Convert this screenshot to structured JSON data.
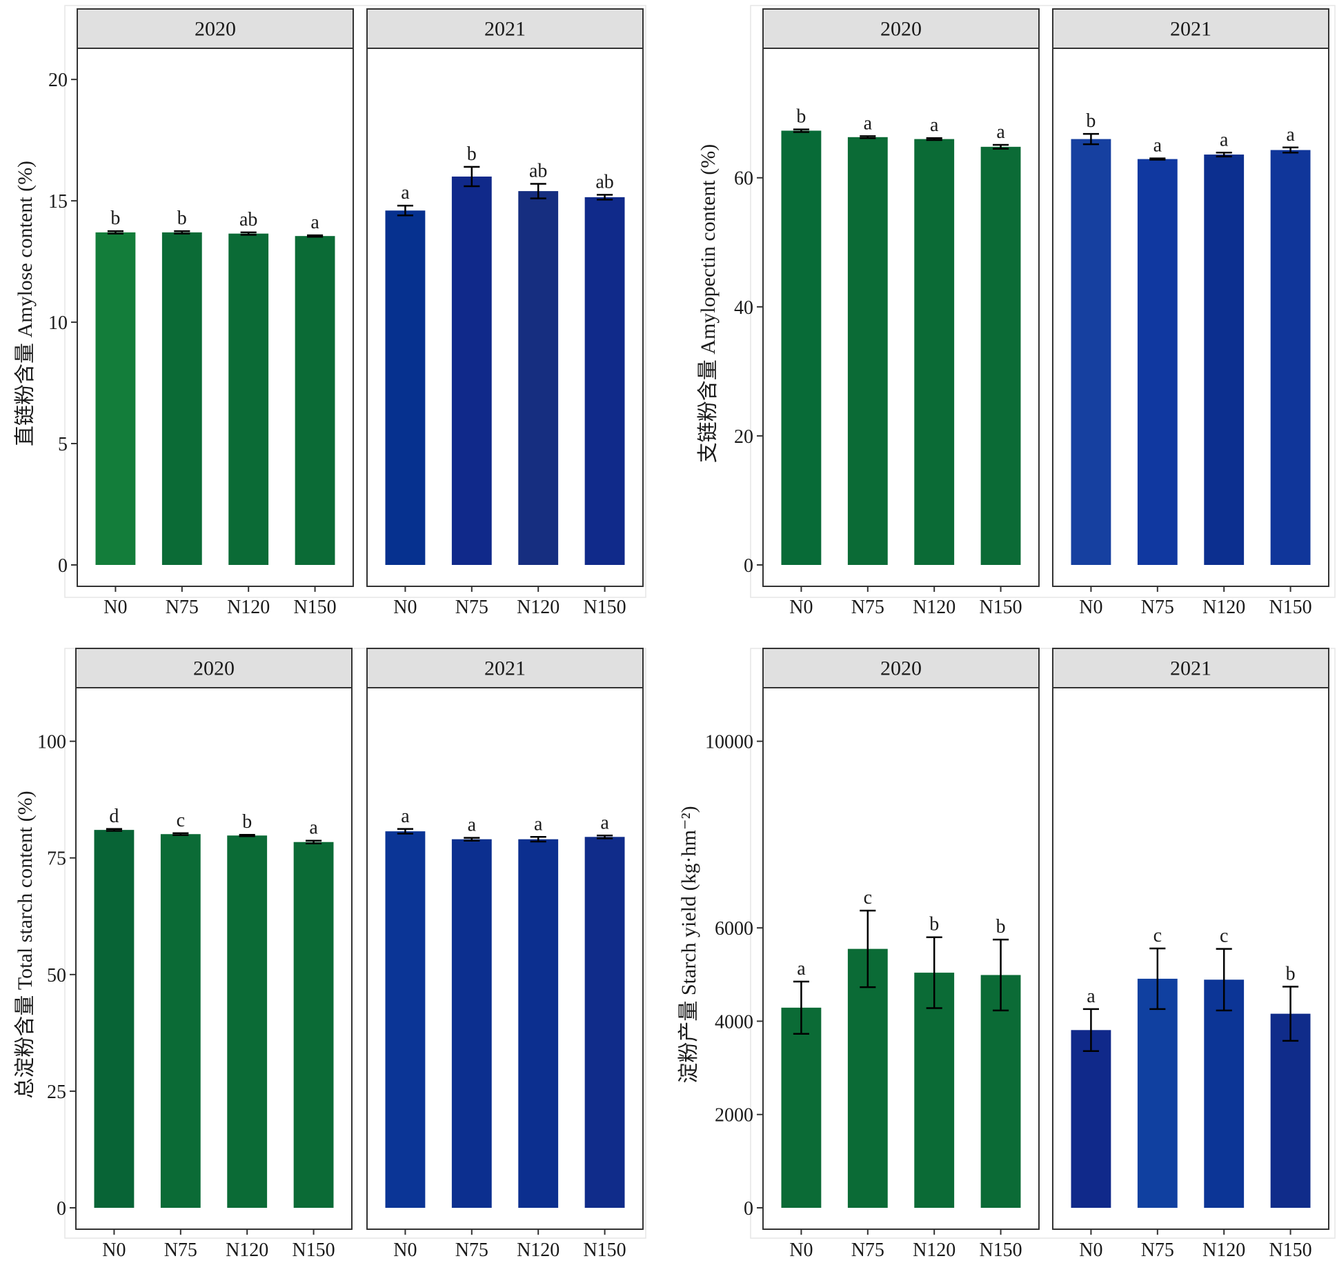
{
  "chart_data": [
    {
      "type": "bar",
      "id": "amylose",
      "ylabel": "直链粉含量 Amylose content (%)",
      "ylim": [
        0,
        21
      ],
      "yticks": [
        0,
        5,
        10,
        15,
        20
      ],
      "categories": [
        "N0",
        "N75",
        "N120",
        "N150"
      ],
      "facets": [
        {
          "label": "2020",
          "values": [
            13.7,
            13.7,
            13.65,
            13.55
          ],
          "errors": [
            0.05,
            0.05,
            0.05,
            0.03
          ],
          "letters": [
            "b",
            "b",
            "ab",
            "a"
          ],
          "colors": [
            "#137d3a",
            "#0b6b36",
            "#0b6b36",
            "#0b6b36"
          ]
        },
        {
          "label": "2021",
          "values": [
            14.6,
            16.0,
            15.4,
            15.15
          ],
          "errors": [
            0.2,
            0.4,
            0.3,
            0.1
          ],
          "letters": [
            "a",
            "b",
            "ab",
            "ab"
          ],
          "colors": [
            "#06318f",
            "#10298a",
            "#162e80",
            "#102a8a"
          ]
        }
      ]
    },
    {
      "type": "bar",
      "id": "amylopectin",
      "ylabel": "支链粉含量 Amylopectin content (%)",
      "ylim": [
        0,
        79
      ],
      "yticks": [
        0,
        20,
        40,
        60
      ],
      "categories": [
        "N0",
        "N75",
        "N120",
        "N150"
      ],
      "facets": [
        {
          "label": "2020",
          "values": [
            67.3,
            66.3,
            66.0,
            64.8
          ],
          "errors": [
            0.2,
            0.15,
            0.15,
            0.3
          ],
          "letters": [
            "b",
            "a",
            "a",
            "a"
          ],
          "colors": [
            "#086b37",
            "#0b6b36",
            "#0b6b36",
            "#0b6b36"
          ]
        },
        {
          "label": "2021",
          "values": [
            66.0,
            62.9,
            63.6,
            64.3
          ],
          "errors": [
            0.8,
            0.1,
            0.3,
            0.4
          ],
          "letters": [
            "b",
            "a",
            "a",
            "a"
          ],
          "colors": [
            "#1640a0",
            "#1038a0",
            "#0c2f8f",
            "#10369a"
          ]
        }
      ]
    },
    {
      "type": "bar",
      "id": "total-starch",
      "ylabel": "总淀粉含量 Total starch content (%)",
      "ylim": [
        0,
        110
      ],
      "yticks": [
        0,
        25,
        50,
        75,
        100
      ],
      "categories": [
        "N0",
        "N75",
        "N120",
        "N150"
      ],
      "facets": [
        {
          "label": "2020",
          "values": [
            81.0,
            80.1,
            79.8,
            78.4
          ],
          "errors": [
            0.2,
            0.2,
            0.15,
            0.3
          ],
          "letters": [
            "d",
            "c",
            "b",
            "a"
          ],
          "colors": [
            "#086436",
            "#0b6b36",
            "#0b6b36",
            "#0b6b36"
          ]
        },
        {
          "label": "2021",
          "values": [
            80.7,
            79.0,
            79.0,
            79.5
          ],
          "errors": [
            0.5,
            0.3,
            0.5,
            0.3
          ],
          "letters": [
            "a",
            "a",
            "a",
            "a"
          ],
          "colors": [
            "#0b3596",
            "#0c2f8f",
            "#0c2f8f",
            "#102c8a"
          ]
        }
      ]
    },
    {
      "type": "bar",
      "id": "starch-yield",
      "ylabel": "淀粉产量 Starch yield (kg·hm⁻²)",
      "ylim": [
        0,
        11000
      ],
      "yticks": [
        0,
        2000,
        4000,
        6000,
        10000
      ],
      "categories": [
        "N0",
        "N75",
        "N120",
        "N150"
      ],
      "facets": [
        {
          "label": "2020",
          "values": [
            4290,
            5550,
            5040,
            4990
          ],
          "errors": [
            560,
            820,
            760,
            760
          ],
          "letters": [
            "a",
            "c",
            "b",
            "b"
          ],
          "colors": [
            "#0b6b36",
            "#0b6b36",
            "#0b6b36",
            "#0b6b36"
          ]
        },
        {
          "label": "2021",
          "values": [
            3810,
            4910,
            4890,
            4160
          ],
          "errors": [
            450,
            650,
            660,
            580
          ],
          "letters": [
            "a",
            "c",
            "c",
            "b"
          ],
          "colors": [
            "#10298a",
            "#1040a0",
            "#0c3596",
            "#102c8a"
          ]
        }
      ]
    }
  ]
}
